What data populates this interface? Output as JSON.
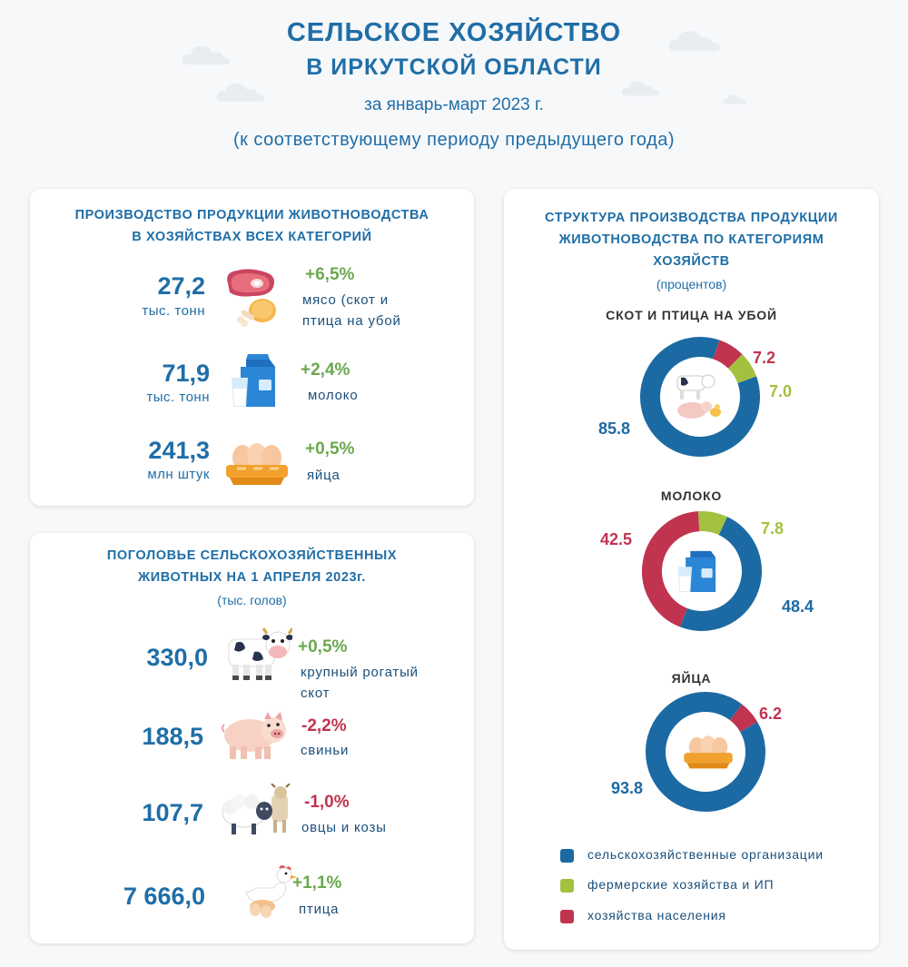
{
  "header": {
    "title_line1": "СЕЛЬСКОЕ ХОЗЯЙСТВО",
    "title_line2": "В ИРКУТСКОЙ ОБЛАСТИ",
    "period": "за январь-март 2023 г.",
    "note": "(к соответствующему периоду предыдущего года)"
  },
  "production": {
    "heading_line1": "ПРОИЗВОДСТВО ПРОДУКЦИИ ЖИВОТНОВОДСТВА",
    "heading_line2": "В ХОЗЯЙСТВАХ ВСЕХ КАТЕГОРИЙ",
    "items": [
      {
        "value": "27,2",
        "unit": "тыс. тонн",
        "change": "+6,5%",
        "label_line1": "мясо (скот и",
        "label_line2": "птица на убой",
        "icon": "meat-icon"
      },
      {
        "value": "71,9",
        "unit": "тыс. тонн",
        "change": "+2,4%",
        "label_line1": "молоко",
        "icon": "milk-icon"
      },
      {
        "value": "241,3",
        "unit": "млн штук",
        "change": "+0,5%",
        "label_line1": "яйца",
        "icon": "eggs-icon"
      }
    ]
  },
  "livestock": {
    "heading_line1": "ПОГОЛОВЬЕ СЕЛЬСКОХОЗЯЙСТВЕННЫХ",
    "heading_line2": "ЖИВОТНЫХ НА 1 АПРЕЛЯ 2023г.",
    "units": "(тыс. голов)",
    "items": [
      {
        "value": "330,0",
        "change": "+0,5%",
        "label_line1": "крупный рогатый",
        "label_line2": "скот",
        "icon": "cow-icon"
      },
      {
        "value": "188,5",
        "change": "-2,2%",
        "label_line1": "свиньи",
        "icon": "pig-icon"
      },
      {
        "value": "107,7",
        "change": "-1,0%",
        "label_line1": "овцы и козы",
        "icon": "sheep-goat-icon"
      },
      {
        "value": "7 666,0",
        "change": "+1,1%",
        "label_line1": "птица",
        "icon": "chicken-icon"
      }
    ]
  },
  "structure": {
    "heading_line1": "СТРУКТУРА ПРОИЗВОДСТВА ПРОДУКЦИИ",
    "heading_line2": "ЖИВОТНОВОДСТВА ПО КАТЕГОРИЯМ",
    "heading_line3": "ХОЗЯЙСТВ",
    "units": "(процентов)"
  },
  "colors": {
    "agri_org": "#1c6aa3",
    "farmers": "#a3c13e",
    "households": "#c0344f",
    "title_blue": "#1f6ea7"
  },
  "chart_data": [
    {
      "type": "pie",
      "title": "СКОТ И ПТИЦА НА УБОЙ",
      "categories": [
        "сельскохозяйственные организации",
        "фермерские хозяйства и ИП",
        "хозяйства населения"
      ],
      "values": [
        85.8,
        7.0,
        7.2
      ],
      "labels": [
        "85.8",
        "7.0",
        "7.2"
      ],
      "icon": "livestock-icon"
    },
    {
      "type": "pie",
      "title": "МОЛОКО",
      "categories": [
        "сельскохозяйственные организации",
        "фермерские хозяйства и ИП",
        "хозяйства населения"
      ],
      "values": [
        48.4,
        7.8,
        42.5
      ],
      "labels": [
        "48.4",
        "7.8",
        "42.5"
      ],
      "icon": "milk-icon"
    },
    {
      "type": "pie",
      "title": "ЯЙЦА",
      "categories": [
        "сельскохозяйственные организации",
        "хозяйства населения"
      ],
      "values": [
        93.8,
        6.2
      ],
      "labels": [
        "93.8",
        "6.2"
      ],
      "icon": "eggs-icon"
    }
  ],
  "legend": [
    {
      "label": "сельскохозяйственные организации",
      "color": "#1c6aa3"
    },
    {
      "label": "фермерские хозяйства и ИП",
      "color": "#a3c13e"
    },
    {
      "label": "хозяйства населения",
      "color": "#c0344f"
    }
  ]
}
